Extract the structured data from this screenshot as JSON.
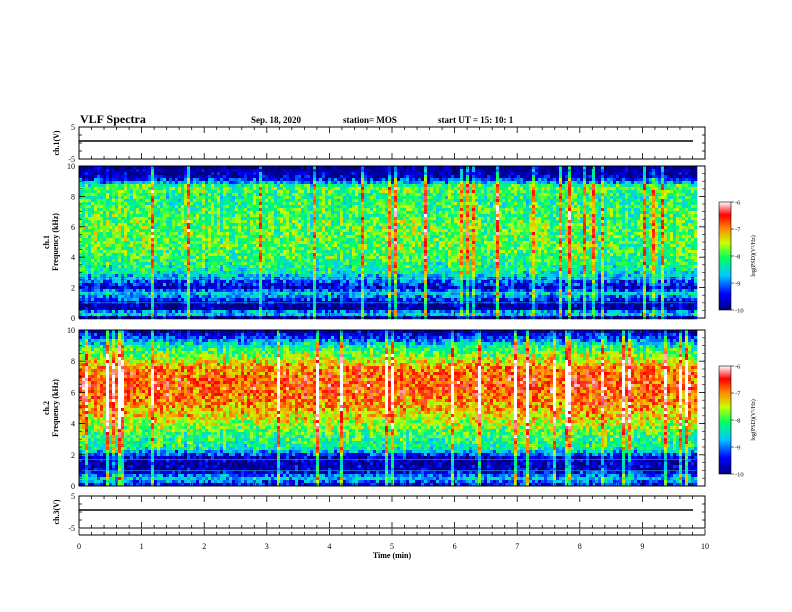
{
  "header": {
    "title": "VLF Spectra",
    "date": "Sep. 18, 2020",
    "station": "station= MOS",
    "start": "start  UT =   15: 10: 1"
  },
  "chart_data": [
    {
      "type": "line",
      "ylabel": "ch.1(V)",
      "ylim": [
        -5,
        5
      ],
      "yticks": [
        "5",
        "-5"
      ],
      "x": [
        0,
        10
      ],
      "values": [
        0,
        0
      ]
    },
    {
      "type": "heatmap",
      "ylabel_top": "ch.1",
      "ylabel": "Frequency  (kHz)",
      "ylim": [
        0,
        10
      ],
      "yticks": [
        "0",
        "2",
        "4",
        "6",
        "8",
        "10"
      ],
      "xlim": [
        0,
        9.85
      ],
      "colorbar": {
        "label": "log(PSD)(V²/Hz)",
        "range": [
          -10,
          -6
        ],
        "ticks": [
          "-6",
          "-7",
          "-8",
          "-9",
          "-10"
        ]
      },
      "band_profile": [
        {
          "f": 0.0,
          "v": -9.8
        },
        {
          "f": 0.3,
          "v": -8.2
        },
        {
          "f": 0.6,
          "v": -9.9
        },
        {
          "f": 1.0,
          "v": -9.7
        },
        {
          "f": 1.6,
          "v": -8.6
        },
        {
          "f": 2.0,
          "v": -9.6
        },
        {
          "f": 3.0,
          "v": -8.4
        },
        {
          "f": 4.0,
          "v": -8.0
        },
        {
          "f": 5.0,
          "v": -7.9
        },
        {
          "f": 6.0,
          "v": -7.9
        },
        {
          "f": 7.0,
          "v": -8.0
        },
        {
          "f": 8.0,
          "v": -8.2
        },
        {
          "f": 8.6,
          "v": -7.8
        },
        {
          "f": 9.2,
          "v": -9.6
        },
        {
          "f": 9.6,
          "v": -9.9
        },
        {
          "f": 10.0,
          "v": -10.0
        }
      ]
    },
    {
      "type": "heatmap",
      "ylabel_top": "ch.2",
      "ylabel": "Frequency  (kHz)",
      "ylim": [
        0,
        10
      ],
      "yticks": [
        "0",
        "2",
        "4",
        "6",
        "8",
        "10"
      ],
      "xlim": [
        0,
        9.85
      ],
      "colorbar": {
        "label": "log(PSD)(V²/Hz)",
        "range": [
          -10,
          -6
        ],
        "ticks": [
          "-6",
          "-7",
          "-8",
          "-9",
          "-10"
        ]
      },
      "band_profile": [
        {
          "f": 0.0,
          "v": -9.6
        },
        {
          "f": 0.5,
          "v": -8.6
        },
        {
          "f": 1.0,
          "v": -9.8
        },
        {
          "f": 1.8,
          "v": -9.7
        },
        {
          "f": 2.4,
          "v": -8.3
        },
        {
          "f": 3.5,
          "v": -7.9
        },
        {
          "f": 4.5,
          "v": -7.3
        },
        {
          "f": 5.5,
          "v": -6.9
        },
        {
          "f": 6.5,
          "v": -6.7
        },
        {
          "f": 7.5,
          "v": -6.9
        },
        {
          "f": 8.3,
          "v": -7.7
        },
        {
          "f": 9.0,
          "v": -8.3
        },
        {
          "f": 9.6,
          "v": -9.4
        },
        {
          "f": 10.0,
          "v": -9.9
        }
      ]
    },
    {
      "type": "line",
      "ylabel": "ch.3(V)",
      "ylim": [
        -5,
        5
      ],
      "yticks": [
        "5",
        "-5"
      ],
      "x": [
        0,
        10
      ],
      "values": [
        0,
        0
      ]
    }
  ],
  "xaxis": {
    "label": "Time  (min)",
    "ticks": [
      "0",
      "1",
      "2",
      "3",
      "4",
      "5",
      "6",
      "7",
      "8",
      "9",
      "10"
    ],
    "xlim": [
      0,
      10
    ]
  }
}
